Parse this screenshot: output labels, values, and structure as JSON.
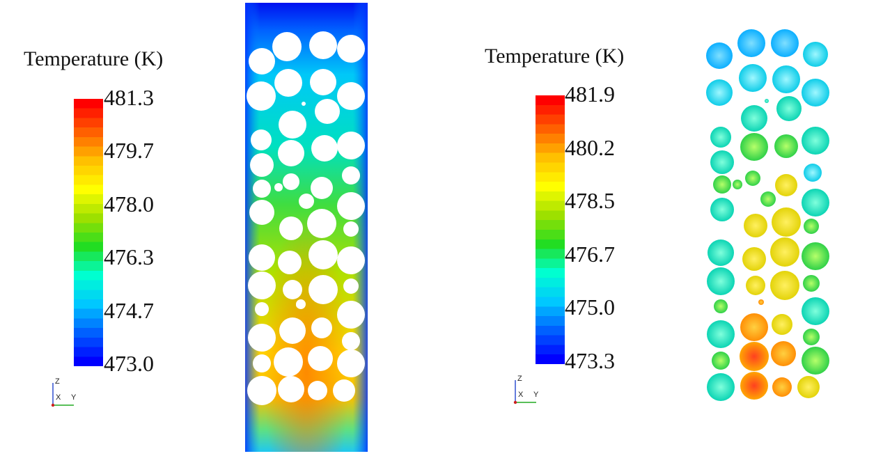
{
  "colors": {
    "colormap": [
      "#0000ff",
      "#0060ff",
      "#00c8ff",
      "#00ffd0",
      "#22dd22",
      "#9de000",
      "#ffff00",
      "#ffc000",
      "#ff6000",
      "#ff0000"
    ]
  },
  "panels": [
    {
      "legend_title": "Temperature (K)",
      "ticks": [
        "481.3",
        "479.7",
        "478.0",
        "476.3",
        "474.7",
        "473.0"
      ],
      "min": 473.0,
      "max": 481.3,
      "axis_labels": {
        "z": "Z",
        "x": "X",
        "y": "Y"
      }
    },
    {
      "legend_title": "Temperature (K)",
      "ticks": [
        "481.9",
        "480.2",
        "478.5",
        "476.7",
        "475.0",
        "473.3"
      ],
      "min": 473.3,
      "max": 481.9,
      "axis_labels": {
        "z": "Z",
        "x": "X",
        "y": "Y"
      }
    }
  ]
}
